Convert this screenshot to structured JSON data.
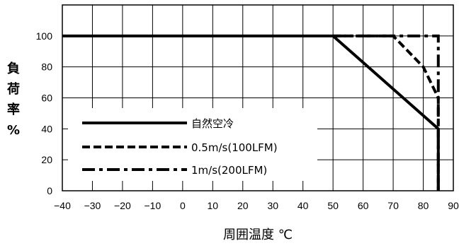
{
  "chart_data": {
    "type": "line",
    "title": "",
    "xlabel": "周囲温度 ℃",
    "ylabel": [
      "負",
      "荷",
      "率",
      "%"
    ],
    "xlim": [
      -40,
      90
    ],
    "ylim": [
      0,
      120
    ],
    "xticks": [
      -40,
      -30,
      -20,
      -10,
      0,
      10,
      20,
      30,
      40,
      50,
      60,
      70,
      80,
      90
    ],
    "xtick_labels": [
      "−40",
      "−30",
      "−20",
      "−10",
      "0",
      "10",
      "20",
      "30",
      "40",
      "50",
      "60",
      "70",
      "80",
      "90"
    ],
    "yticks": [
      0,
      20,
      40,
      60,
      80,
      100
    ],
    "ytick_labels": [
      "0",
      "20",
      "40",
      "60",
      "80",
      "100"
    ],
    "grid": true,
    "legend_position": "bottom-left",
    "series": [
      {
        "name": "自然空冷",
        "style": "solid",
        "x": [
          -40,
          50,
          85,
          85
        ],
        "y": [
          100,
          100,
          40,
          0
        ]
      },
      {
        "name": "0.5m/s(100LFM)",
        "style": "dashed",
        "x": [
          50,
          70,
          80,
          85,
          85
        ],
        "y": [
          100,
          100,
          80,
          60,
          0
        ]
      },
      {
        "name": "1m/s(200LFM)",
        "style": "dashdot",
        "x": [
          50,
          85,
          85
        ],
        "y": [
          100,
          100,
          0
        ]
      }
    ]
  }
}
